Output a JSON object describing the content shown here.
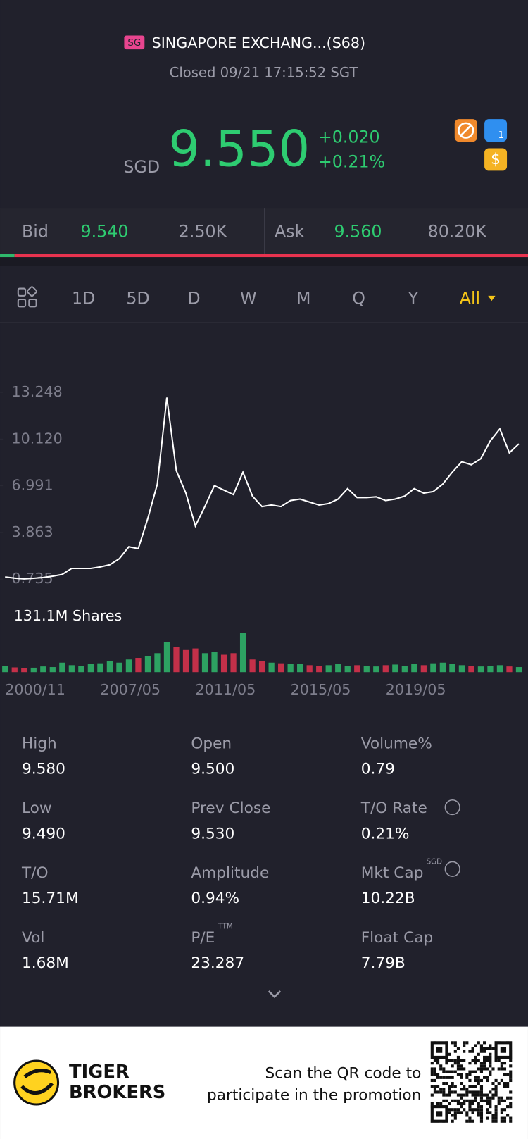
{
  "header": {
    "badge": "SG",
    "name": "SINGAPORE EXCHANG...(S68)",
    "status": "Closed 09/21 17:15:52 SGT",
    "currency": "SGD",
    "price": "9.550",
    "change": "+0.020",
    "change_pct": "+0.21%",
    "icons": [
      "1",
      "$"
    ]
  },
  "quote": {
    "bid_label": "Bid",
    "bid": "9.540",
    "bid_size": "2.50K",
    "ask_label": "Ask",
    "ask": "9.560",
    "ask_size": "80.20K"
  },
  "tabs": [
    "1D",
    "5D",
    "D",
    "W",
    "M",
    "Q",
    "Y",
    "All"
  ],
  "chart_data": {
    "type": "line",
    "categories": [
      "2000/11",
      null,
      null,
      null,
      null,
      null,
      null,
      null,
      null,
      null,
      "2007/05",
      null,
      null,
      null,
      null,
      null,
      null,
      null,
      null,
      null,
      "2011/05",
      null,
      null,
      null,
      null,
      null,
      null,
      null,
      null,
      null,
      "2015/05",
      null,
      null,
      null,
      null,
      null,
      null,
      null,
      null,
      null,
      "2019/05",
      null,
      null,
      null,
      null,
      null,
      null,
      null,
      null,
      null,
      null,
      null,
      null,
      null,
      null
    ],
    "series": [
      {
        "color": "#ffffff",
        "values": [
          0.88,
          0.8,
          0.75,
          0.79,
          0.84,
          0.93,
          1.05,
          1.45,
          1.45,
          1.45,
          1.55,
          1.7,
          2.1,
          2.9,
          2.78,
          4.8,
          7.1,
          12.9,
          8.0,
          6.5,
          4.3,
          5.6,
          7.0,
          6.7,
          6.4,
          7.9,
          6.3,
          5.6,
          5.7,
          5.6,
          6.0,
          6.1,
          5.9,
          5.7,
          5.8,
          6.1,
          6.8,
          6.2,
          6.2,
          6.25,
          6.0,
          6.1,
          6.3,
          6.8,
          6.5,
          6.6,
          7.1,
          7.9,
          8.6,
          8.4,
          8.8,
          10.0,
          10.8,
          9.2,
          9.8
        ]
      }
    ],
    "ylim": [
      0.735,
      13.248
    ],
    "yticks": [
      0.735,
      3.863,
      6.991,
      {
        "value": 10.12,
        "label": "10.120"
      },
      13.248
    ],
    "volume": {
      "label": "131.1M Shares",
      "vlim": [
        0,
        131.1
      ],
      "up_color": "#2fb96c",
      "down_color": "#e0334f",
      "values": [
        20,
        15,
        12,
        14,
        18,
        16,
        30,
        22,
        20,
        25,
        28,
        35,
        30,
        40,
        45,
        50,
        60,
        95,
        80,
        70,
        75,
        60,
        65,
        55,
        60,
        125,
        40,
        35,
        30,
        28,
        25,
        25,
        22,
        20,
        22,
        25,
        20,
        22,
        20,
        18,
        22,
        24,
        20,
        25,
        22,
        28,
        30,
        25,
        22,
        20,
        18,
        20,
        22,
        18,
        16
      ]
    }
  },
  "stats": [
    {
      "label": "High",
      "value": "9.580"
    },
    {
      "label": "Open",
      "value": "9.500"
    },
    {
      "label": "Volume%",
      "value": "0.79"
    },
    {
      "label": "Low",
      "value": "9.490"
    },
    {
      "label": "Prev Close",
      "value": "9.530"
    },
    {
      "label": "T/O Rate",
      "value": "0.21%"
    },
    {
      "label": "T/O",
      "value": "15.71M"
    },
    {
      "label": "Amplitude",
      "value": "0.94%"
    },
    {
      "label": "Mkt Cap",
      "value": "10.22B",
      "sup": "SGD"
    },
    {
      "label": "Vol",
      "value": "1.68M"
    },
    {
      "label": "P/E",
      "value": "23.287",
      "sup": "TTM"
    },
    {
      "label": "Float Cap",
      "value": "7.79B"
    }
  ],
  "footer": {
    "brand": [
      "TIGER",
      "BROKERS"
    ],
    "text": [
      "Scan the QR code to",
      "participate in the promotion"
    ]
  }
}
